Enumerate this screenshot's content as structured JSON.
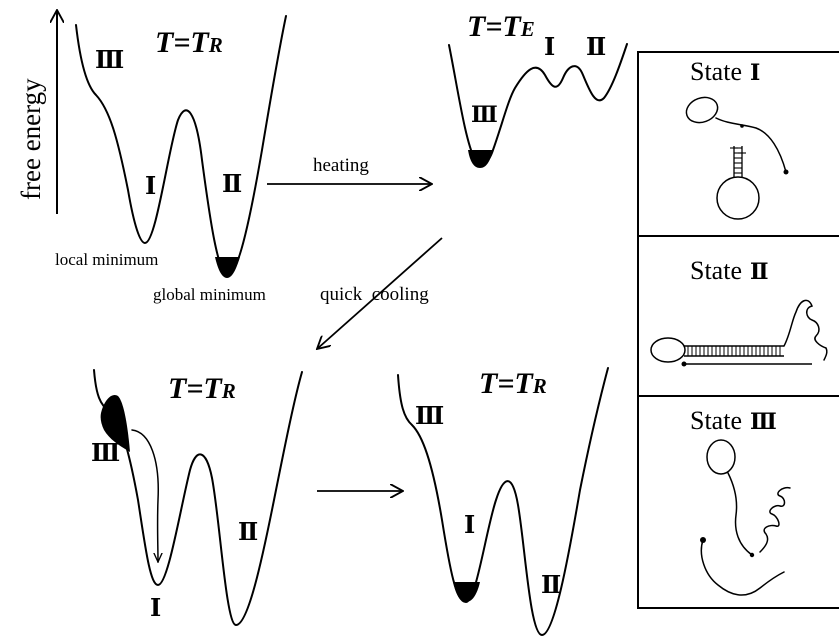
{
  "axis": {
    "ylabel": "free energy"
  },
  "panels": {
    "top_left": {
      "temp_main": "T=T",
      "temp_sub": "R",
      "state_iii": "Ⅲ",
      "state_i": "Ⅰ",
      "state_ii": "Ⅱ",
      "local_min": "local minimum",
      "global_min": "global minimum"
    },
    "top_right": {
      "temp_main": "T=T",
      "temp_sub": "E",
      "state_i": "Ⅰ",
      "state_ii": "Ⅱ",
      "state_iii": "Ⅲ"
    },
    "bottom_left": {
      "temp_main": "T=T",
      "temp_sub": "R",
      "state_iii": "Ⅲ",
      "state_ii": "Ⅱ",
      "state_i": "Ⅰ"
    },
    "bottom_right": {
      "temp_main": "T=T",
      "temp_sub": "R",
      "state_iii": "Ⅲ",
      "state_i": "Ⅰ",
      "state_ii": "Ⅱ"
    }
  },
  "arrows": {
    "heating": "heating",
    "quick_cooling": "quick  cooling"
  },
  "legend": {
    "state_1": {
      "word": "State",
      "numeral": "Ⅰ"
    },
    "state_2": {
      "word": "State",
      "numeral": "Ⅱ"
    },
    "state_3": {
      "word": "State",
      "numeral": "Ⅲ"
    }
  }
}
